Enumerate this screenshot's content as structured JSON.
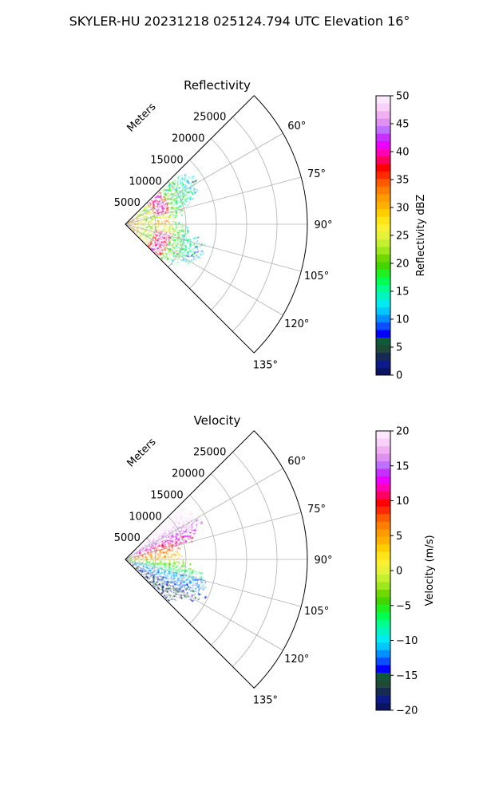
{
  "figure": {
    "suptitle": "SKYLER-HU  20231218  025124.794 UTC Elevation 16°"
  },
  "chart_data": [
    {
      "type": "heatmap",
      "subtype": "polar-sector",
      "title": "Reflectivity",
      "radial_label": "Meters",
      "radial_ticks": [
        5000,
        10000,
        15000,
        20000,
        25000
      ],
      "r_max": 30000,
      "azimuth_range_deg": [
        45,
        135
      ],
      "azimuth_ticks": [
        60,
        75,
        90,
        105,
        120,
        135
      ],
      "azimuth_tick_labels": [
        "60°",
        "75°",
        "90°",
        "105°",
        "120°",
        "135°"
      ],
      "grid": true,
      "colorbar": {
        "label": "Reflectivity dBZ",
        "min": 0,
        "max": 50,
        "ticks": [
          0,
          5,
          10,
          15,
          20,
          25,
          30,
          35,
          40,
          45,
          50
        ],
        "tick_labels": [
          "0",
          "5",
          "10",
          "15",
          "20",
          "25",
          "30",
          "35",
          "40",
          "45",
          "50"
        ],
        "colors": [
          "#0b1461",
          "#0c1a8a",
          "#162b52",
          "#1f4a35",
          "#0e5a3a",
          "#0000ff",
          "#0a4fff",
          "#0090ff",
          "#00c8ff",
          "#00ecf0",
          "#00f5c0",
          "#00ff8c",
          "#00ff50",
          "#20f020",
          "#44d400",
          "#6ed800",
          "#9de81c",
          "#c4f030",
          "#e4f238",
          "#f8f030",
          "#ffe418",
          "#ffce00",
          "#ffb000",
          "#ff9a00",
          "#ff7d00",
          "#ff5a00",
          "#ff2a00",
          "#ff0000",
          "#ff0060",
          "#ff00b4",
          "#ee00ff",
          "#c730ff",
          "#c070ff",
          "#e090f0",
          "#f0b0f2",
          "#f8d0f8",
          "#fbe8fc"
        ]
      }
    },
    {
      "type": "heatmap",
      "subtype": "polar-sector",
      "title": "Velocity",
      "radial_label": "Meters",
      "radial_ticks": [
        5000,
        10000,
        15000,
        20000,
        25000
      ],
      "r_max": 30000,
      "azimuth_range_deg": [
        45,
        135
      ],
      "azimuth_ticks": [
        60,
        75,
        90,
        105,
        120,
        135
      ],
      "azimuth_tick_labels": [
        "60°",
        "75°",
        "90°",
        "105°",
        "120°",
        "135°"
      ],
      "grid": true,
      "colorbar": {
        "label": "Velocity (m/s)",
        "min": -20,
        "max": 20,
        "ticks": [
          -20,
          -15,
          -10,
          -5,
          0,
          5,
          10,
          15,
          20
        ],
        "tick_labels": [
          "−20",
          "−15",
          "−10",
          "−5",
          "0",
          "5",
          "10",
          "15",
          "20"
        ],
        "colors": [
          "#0b1461",
          "#0c1a8a",
          "#162b52",
          "#1f4a35",
          "#0e5a3a",
          "#0000ff",
          "#0a4fff",
          "#0090ff",
          "#00c8ff",
          "#00ecf0",
          "#00f5c0",
          "#00ff8c",
          "#00ff50",
          "#20f020",
          "#44d400",
          "#6ed800",
          "#9de81c",
          "#c4f030",
          "#e4f238",
          "#f8f030",
          "#ffe418",
          "#ffce00",
          "#ffb000",
          "#ff9a00",
          "#ff7d00",
          "#ff5a00",
          "#ff2a00",
          "#ff0000",
          "#ff0060",
          "#ff00b4",
          "#ee00ff",
          "#c730ff",
          "#c070ff",
          "#e090f0",
          "#f0b0f2",
          "#f8d0f8",
          "#fbe8fc"
        ]
      }
    }
  ]
}
